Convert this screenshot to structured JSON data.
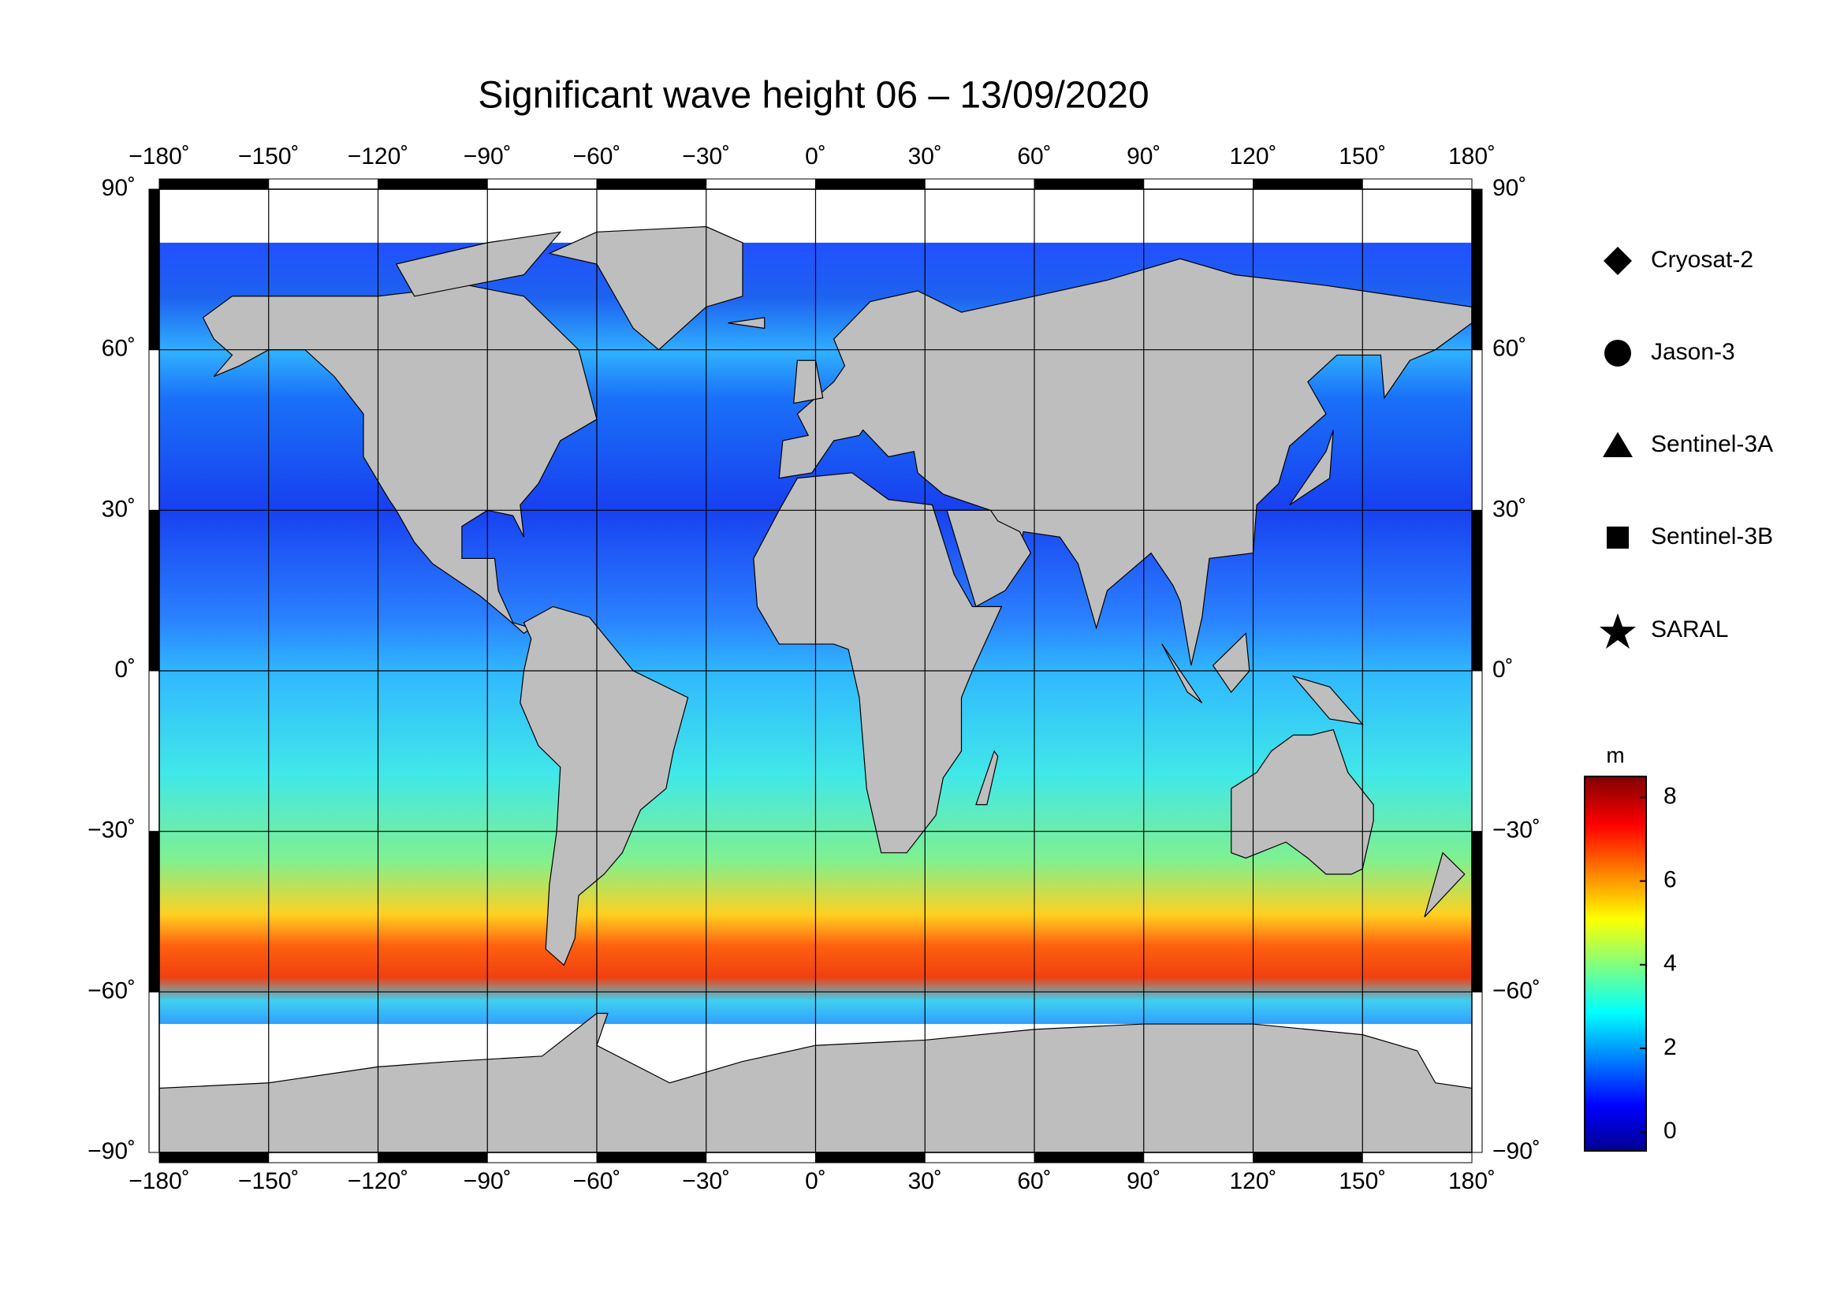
{
  "title": "Significant wave height 06 – 13/09/2020",
  "map": {
    "xlim": [
      -180,
      180
    ],
    "ylim": [
      -90,
      90
    ],
    "xticks": [
      {
        "value": -180,
        "label": "−180˚"
      },
      {
        "value": -150,
        "label": "−150˚"
      },
      {
        "value": -120,
        "label": "−120˚"
      },
      {
        "value": -90,
        "label": "−90˚"
      },
      {
        "value": -60,
        "label": "−60˚"
      },
      {
        "value": -30,
        "label": "−30˚"
      },
      {
        "value": 0,
        "label": "0˚"
      },
      {
        "value": 30,
        "label": "30˚"
      },
      {
        "value": 60,
        "label": "60˚"
      },
      {
        "value": 90,
        "label": "90˚"
      },
      {
        "value": 120,
        "label": "120˚"
      },
      {
        "value": 150,
        "label": "150˚"
      },
      {
        "value": 180,
        "label": "180˚"
      }
    ],
    "yticks": [
      {
        "value": -90,
        "label": "−90˚"
      },
      {
        "value": -60,
        "label": "−60˚"
      },
      {
        "value": -30,
        "label": "−30˚"
      },
      {
        "value": 0,
        "label": "0˚"
      },
      {
        "value": 30,
        "label": "30˚"
      },
      {
        "value": 60,
        "label": "60˚"
      },
      {
        "value": 90,
        "label": "90˚"
      }
    ],
    "grid": true
  },
  "legend": [
    {
      "name": "Cryosat-2"
    },
    {
      "name": "Jason-3"
    },
    {
      "name": "Sentinel-3A"
    },
    {
      "name": "Sentinel-3B"
    },
    {
      "name": "SARAL"
    }
  ],
  "colorbar": {
    "label": "m",
    "lim": [
      -0.45,
      8.5
    ],
    "ticks": [
      0,
      2,
      4,
      6,
      8
    ]
  }
}
